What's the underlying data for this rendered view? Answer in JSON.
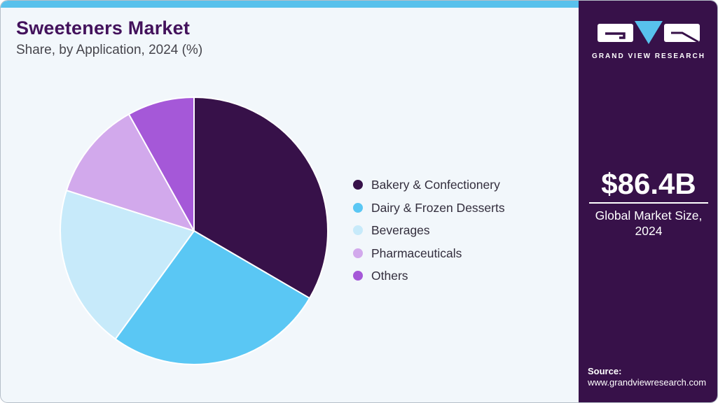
{
  "header": {
    "title": "Sweeteners Market",
    "subtitle": "Share, by Application, 2024 (%)"
  },
  "chart_data": {
    "type": "pie",
    "title": "Sweeteners Market Share, by Application, 2024 (%)",
    "unit": "percent",
    "start_angle_deg": 0,
    "direction": "clockwise",
    "legend_position": "right",
    "segments": [
      {
        "label": "Bakery & Confectionery",
        "value": 33.4,
        "color": "#371149"
      },
      {
        "label": "Dairy & Frozen Desserts",
        "value": 26.6,
        "color": "#5ac7f4"
      },
      {
        "label": "Beverages",
        "value": 19.9,
        "color": "#c7eafa"
      },
      {
        "label": "Pharmaceuticals",
        "value": 12.0,
        "color": "#d2a9ec"
      },
      {
        "label": "Others",
        "value": 8.1,
        "color": "#a558d8"
      }
    ]
  },
  "sidebar": {
    "brand": "GRAND VIEW RESEARCH",
    "market_size": "$86.4B",
    "market_size_caption": "Global Market Size, 2024",
    "source_label": "Source:",
    "source_url": "www.grandviewresearch.com"
  },
  "colors": {
    "card_bg": "#f2f7fb",
    "topbar": "#58c1ec",
    "sidebar_bg": "#371149",
    "title_text": "#43125c",
    "subtitle_text": "#46454c",
    "legend_text": "#332e3d",
    "logo_triangle": "#58c1ec",
    "slice_stroke": "#ffffff"
  }
}
